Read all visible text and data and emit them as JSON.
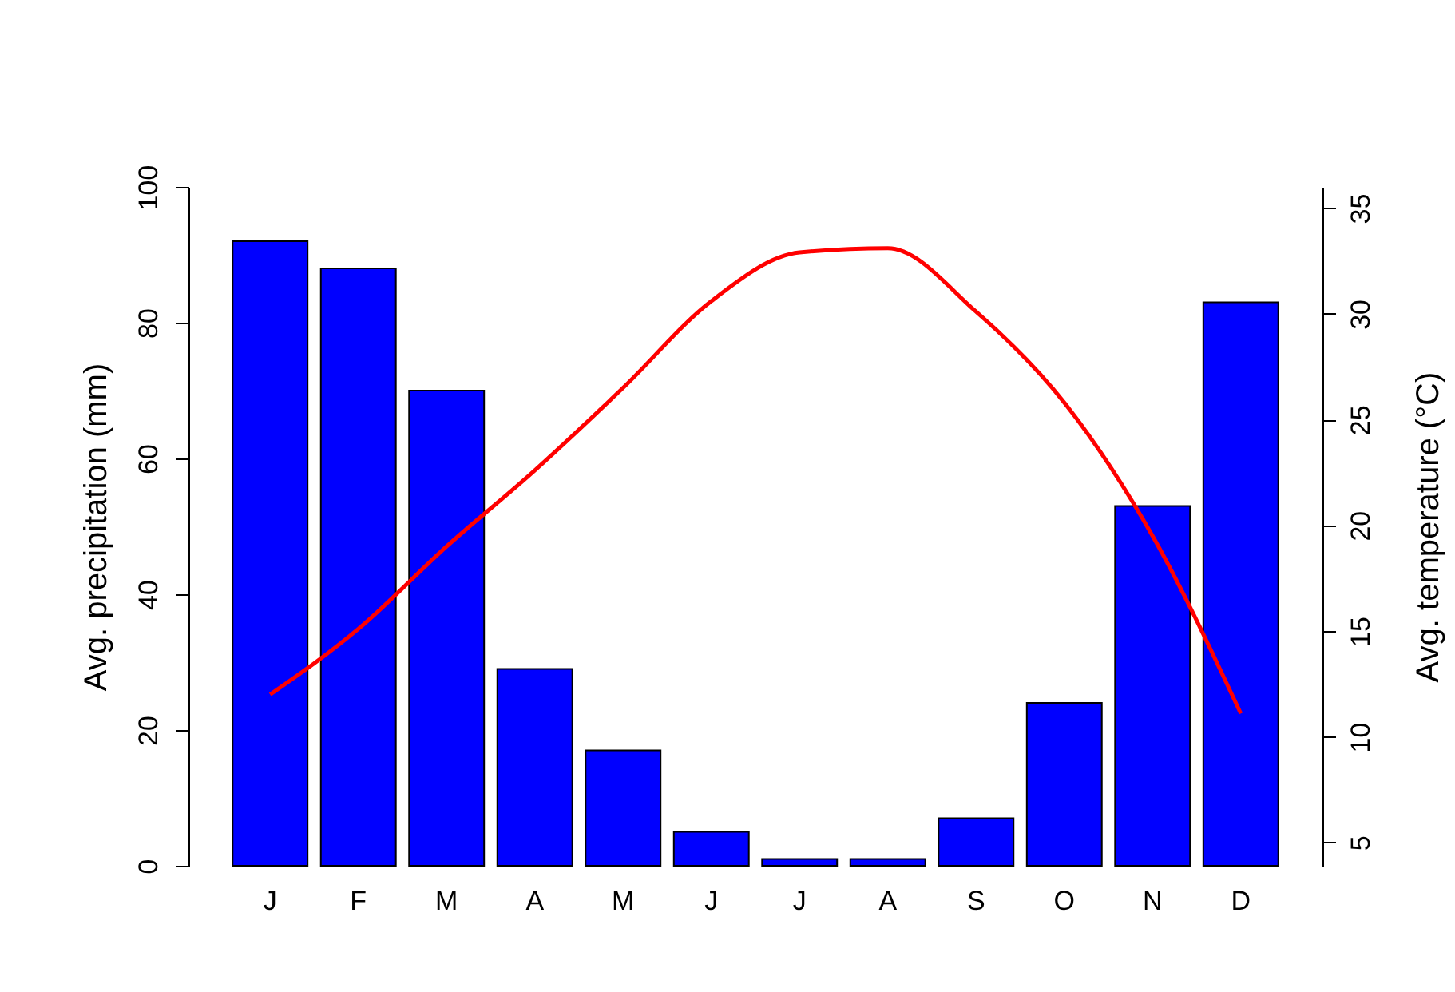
{
  "chart_data": {
    "type": "bar",
    "categories": [
      "J",
      "F",
      "M",
      "A",
      "M",
      "J",
      "J",
      "A",
      "S",
      "O",
      "N",
      "D"
    ],
    "ylabel": "Avg. precipitation (mm)",
    "y2label": "Avg. temperature (°C)",
    "ylim": [
      0,
      100
    ],
    "yticks": [
      0,
      20,
      40,
      60,
      80,
      100
    ],
    "y2lim": [
      3.9,
      36
    ],
    "y2ticks": [
      5,
      10,
      15,
      20,
      25,
      30,
      35
    ],
    "series": [
      {
        "color": "#0000ff",
        "values": [
          92,
          88,
          70,
          29,
          17,
          5,
          1,
          1,
          7,
          24,
          53,
          83
        ]
      },
      {
        "type": "line",
        "axis": "y2",
        "color": "#ff0000",
        "values": [
          12,
          15.1,
          19,
          22.6,
          26.5,
          30.6,
          32.9,
          33.1,
          30.1,
          25.8,
          19.5,
          11.1
        ]
      }
    ]
  }
}
